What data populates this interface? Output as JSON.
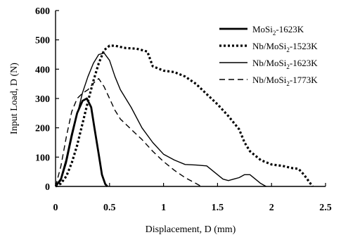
{
  "chart_data": {
    "type": "line",
    "title": "",
    "xlabel": "Displacement, D (mm)",
    "ylabel": "Input Load, D (N)",
    "xlim": [
      0,
      2.5
    ],
    "ylim": [
      0,
      600
    ],
    "xticks": [
      0,
      0.5,
      1,
      1.5,
      2,
      2.5
    ],
    "xtick_labels": [
      "0",
      "0.5",
      "1",
      "1.5",
      "2",
      "2.5"
    ],
    "yticks": [
      0,
      100,
      200,
      300,
      400,
      500,
      600
    ],
    "ytick_labels": [
      "0",
      "100",
      "200",
      "300",
      "400",
      "500",
      "600"
    ],
    "grid": false,
    "legend_position": "top-right",
    "series": [
      {
        "name_prefix": "MoSi",
        "name_sub": "2",
        "name_suffix": "-1623K",
        "style": "solid-thick",
        "x": [
          0.0,
          0.05,
          0.1,
          0.15,
          0.2,
          0.25,
          0.29,
          0.33,
          0.36,
          0.4,
          0.43,
          0.46,
          0.48
        ],
        "y": [
          0,
          25,
          90,
          175,
          250,
          292,
          300,
          270,
          200,
          110,
          40,
          8,
          0
        ]
      },
      {
        "name_prefix": "Nb/MoSi",
        "name_sub": "2",
        "name_suffix": "-1523K",
        "style": "dotted-thick",
        "x": [
          0.0,
          0.05,
          0.1,
          0.15,
          0.2,
          0.25,
          0.3,
          0.35,
          0.4,
          0.45,
          0.5,
          0.55,
          0.65,
          0.75,
          0.85,
          0.9,
          1.0,
          1.1,
          1.2,
          1.3,
          1.4,
          1.5,
          1.6,
          1.7,
          1.75,
          1.8,
          1.9,
          2.0,
          2.1,
          2.2,
          2.25,
          2.3,
          2.35,
          2.38
        ],
        "y": [
          0,
          10,
          35,
          80,
          140,
          215,
          290,
          360,
          420,
          465,
          480,
          480,
          472,
          470,
          460,
          410,
          395,
          390,
          375,
          350,
          315,
          280,
          240,
          195,
          150,
          120,
          90,
          75,
          70,
          62,
          60,
          40,
          15,
          0
        ]
      },
      {
        "name_prefix": "Nb/MoSi",
        "name_sub": "2",
        "name_suffix": "-1623K",
        "style": "solid-thin",
        "x": [
          0.0,
          0.05,
          0.1,
          0.15,
          0.2,
          0.25,
          0.3,
          0.35,
          0.4,
          0.45,
          0.5,
          0.55,
          0.6,
          0.7,
          0.8,
          0.9,
          1.0,
          1.1,
          1.2,
          1.3,
          1.4,
          1.5,
          1.55,
          1.6,
          1.65,
          1.7,
          1.75,
          1.8,
          1.85,
          1.9,
          1.95
        ],
        "y": [
          0,
          20,
          80,
          165,
          245,
          320,
          375,
          420,
          450,
          455,
          430,
          375,
          330,
          270,
          200,
          150,
          110,
          90,
          75,
          73,
          70,
          40,
          25,
          20,
          25,
          30,
          40,
          40,
          25,
          10,
          0
        ]
      },
      {
        "name_prefix": "Nb/MoSi",
        "name_sub": "2",
        "name_suffix": "-1773K",
        "style": "dashed",
        "x": [
          0.0,
          0.05,
          0.1,
          0.15,
          0.2,
          0.25,
          0.3,
          0.35,
          0.4,
          0.45,
          0.5,
          0.55,
          0.6,
          0.7,
          0.8,
          0.9,
          1.0,
          1.1,
          1.2,
          1.3,
          1.35
        ],
        "y": [
          0,
          70,
          170,
          255,
          300,
          318,
          330,
          352,
          368,
          340,
          300,
          260,
          230,
          195,
          160,
          120,
          85,
          55,
          30,
          10,
          0
        ]
      }
    ]
  }
}
